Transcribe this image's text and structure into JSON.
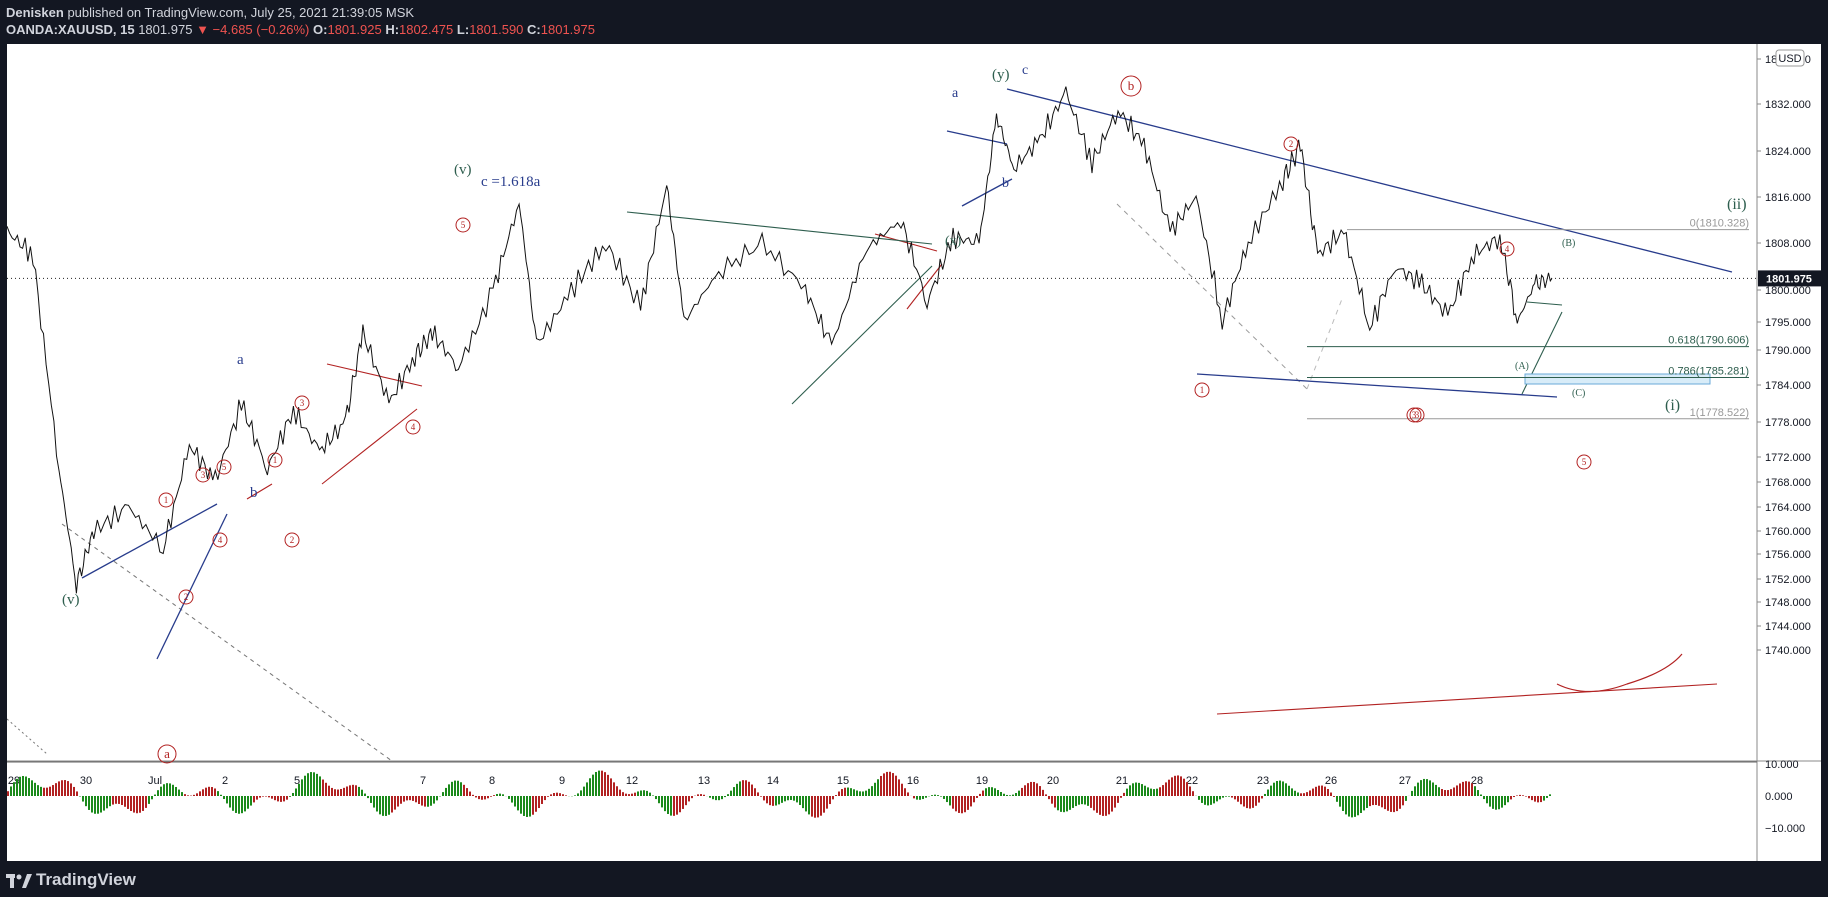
{
  "header": {
    "author": "Denisken",
    "published": "published on TradingView.com, July 25, 2021 21:39:05 MSK",
    "symbol": "OANDA:XAUUSD, 15",
    "last": "1801.975",
    "change": "▼ −4.685 (−0.26%)",
    "o_label": "O:",
    "o_value": "1801.925",
    "h_label": "H:",
    "h_value": "1802.475",
    "l_label": "L:",
    "l_value": "1801.590",
    "c_label": "C:",
    "c_value": "1801.975"
  },
  "footer": {
    "brand": "TradingView"
  },
  "colors": {
    "bg": "#131722",
    "chart_bg": "#ffffff",
    "red": "#b22222",
    "navy": "#283c8c",
    "green": "#2e5e4e",
    "hist_red": "#b22222",
    "hist_green": "#1b8a1b"
  },
  "chart_data": {
    "type": "line",
    "currency": "USD",
    "last_price_label": "1801.975",
    "last_price": 1801.975,
    "y_range": [
      1738.0,
      1843.0
    ],
    "y_ticks": [
      "1840.000",
      "1832.000",
      "1824.000",
      "1816.000",
      "1808.000",
      "1800.000",
      "1795.000",
      "1790.000",
      "1784.000",
      "1778.000",
      "1772.000",
      "1768.000",
      "1764.000",
      "1760.000",
      "1756.000",
      "1752.000",
      "1748.000",
      "1744.000",
      "1740.000"
    ],
    "x_ticks": [
      "29",
      "30",
      "Jul",
      "2",
      "5",
      "7",
      "8",
      "9",
      "12",
      "13",
      "14",
      "15",
      "16",
      "19",
      "20",
      "21",
      "22",
      "23",
      "26",
      "27",
      "28"
    ],
    "price_series": [
      {
        "t": 0,
        "p": 1810
      },
      {
        "t": 0.3,
        "p": 1806
      },
      {
        "t": 0.6,
        "p": 1770
      },
      {
        "t": 0.8,
        "p": 1751
      },
      {
        "t": 1.0,
        "p": 1760
      },
      {
        "t": 1.4,
        "p": 1764
      },
      {
        "t": 1.8,
        "p": 1757
      },
      {
        "t": 2.1,
        "p": 1774
      },
      {
        "t": 2.4,
        "p": 1768
      },
      {
        "t": 2.7,
        "p": 1781
      },
      {
        "t": 3.0,
        "p": 1770
      },
      {
        "t": 3.3,
        "p": 1780
      },
      {
        "t": 3.6,
        "p": 1773
      },
      {
        "t": 3.9,
        "p": 1778
      },
      {
        "t": 4.1,
        "p": 1793
      },
      {
        "t": 4.4,
        "p": 1781
      },
      {
        "t": 4.7,
        "p": 1789
      },
      {
        "t": 4.9,
        "p": 1793
      },
      {
        "t": 5.2,
        "p": 1787
      },
      {
        "t": 5.6,
        "p": 1800
      },
      {
        "t": 5.9,
        "p": 1815
      },
      {
        "t": 6.1,
        "p": 1791
      },
      {
        "t": 6.5,
        "p": 1800
      },
      {
        "t": 6.9,
        "p": 1808
      },
      {
        "t": 7.3,
        "p": 1797
      },
      {
        "t": 7.6,
        "p": 1818
      },
      {
        "t": 7.8,
        "p": 1795
      },
      {
        "t": 8.2,
        "p": 1803
      },
      {
        "t": 8.7,
        "p": 1808
      },
      {
        "t": 9.2,
        "p": 1800
      },
      {
        "t": 9.5,
        "p": 1791
      },
      {
        "t": 9.9,
        "p": 1807
      },
      {
        "t": 10.3,
        "p": 1812
      },
      {
        "t": 10.6,
        "p": 1798
      },
      {
        "t": 10.9,
        "p": 1809
      },
      {
        "t": 11.2,
        "p": 1808
      },
      {
        "t": 11.4,
        "p": 1830
      },
      {
        "t": 11.6,
        "p": 1821
      },
      {
        "t": 11.9,
        "p": 1826
      },
      {
        "t": 12.2,
        "p": 1834
      },
      {
        "t": 12.5,
        "p": 1822
      },
      {
        "t": 12.8,
        "p": 1831
      },
      {
        "t": 13.1,
        "p": 1825
      },
      {
        "t": 13.4,
        "p": 1810
      },
      {
        "t": 13.7,
        "p": 1816
      },
      {
        "t": 14.0,
        "p": 1795
      },
      {
        "t": 14.3,
        "p": 1808
      },
      {
        "t": 14.7,
        "p": 1819
      },
      {
        "t": 14.9,
        "p": 1825
      },
      {
        "t": 15.1,
        "p": 1806
      },
      {
        "t": 15.4,
        "p": 1810
      },
      {
        "t": 15.7,
        "p": 1794
      },
      {
        "t": 16.0,
        "p": 1804
      },
      {
        "t": 16.3,
        "p": 1801
      },
      {
        "t": 16.6,
        "p": 1796
      },
      {
        "t": 16.9,
        "p": 1806
      },
      {
        "t": 17.2,
        "p": 1809
      },
      {
        "t": 17.4,
        "p": 1795
      },
      {
        "t": 17.6,
        "p": 1801
      },
      {
        "t": 17.8,
        "p": 1802
      }
    ],
    "fib_levels": [
      {
        "label": "0(1810.328)",
        "value": 1810.328
      },
      {
        "label": "0.618(1790.606)",
        "value": 1790.606
      },
      {
        "label": "0.786(1785.281)",
        "value": 1785.281
      },
      {
        "label": "1(1778.522)",
        "value": 1778.522
      }
    ],
    "annotations": {
      "circled_red": [
        "a",
        "b",
        "5",
        "4",
        "3",
        "1",
        "5",
        "3",
        "1",
        "2",
        "4",
        "2",
        "1",
        "3",
        "2",
        "4",
        "3",
        "5"
      ],
      "text_labels": [
        "(v)",
        "(v)",
        "c =1.618a",
        "(y)",
        "c",
        "a",
        "b",
        "(x)",
        "a",
        "b",
        "(ii)",
        "(i)",
        "(A)",
        "(B)",
        "(C)"
      ]
    },
    "oscillator": {
      "y_ticks": [
        "10.000",
        "0.000",
        "−10.000"
      ],
      "y_range": [
        -12,
        12
      ]
    }
  }
}
